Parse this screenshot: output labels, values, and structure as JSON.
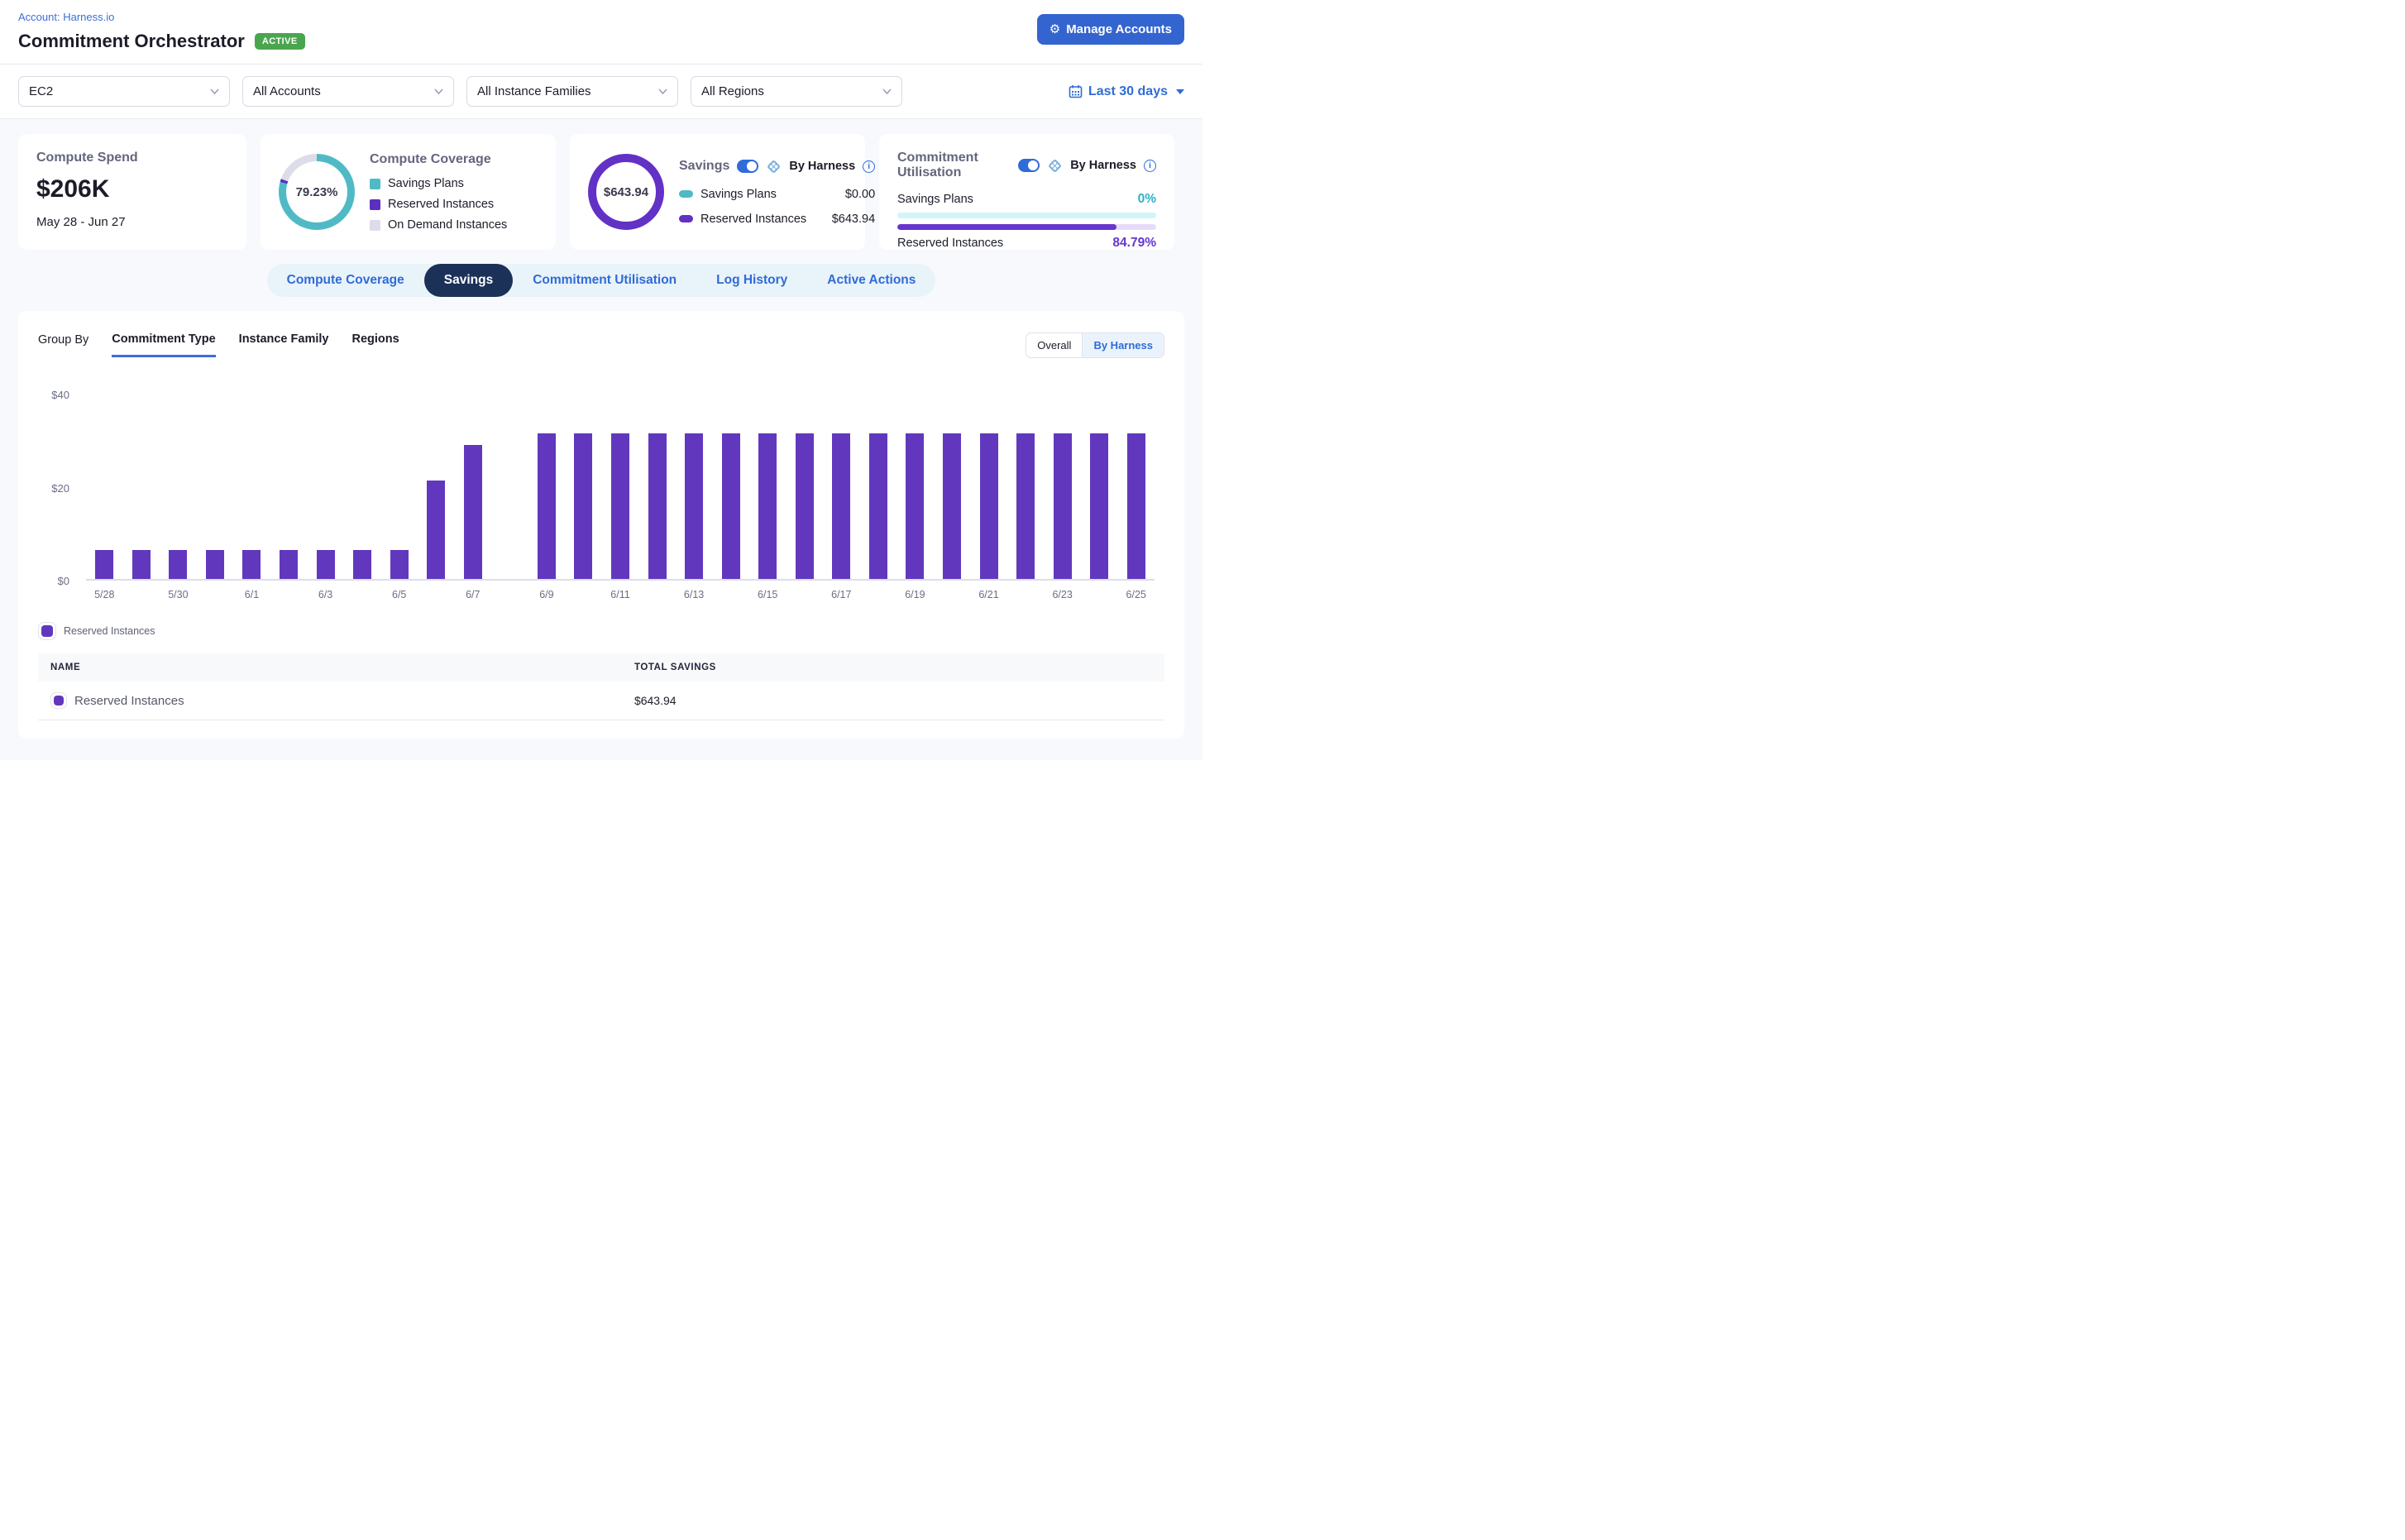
{
  "header": {
    "account_link": "Account: Harness.io",
    "title": "Commitment Orchestrator",
    "status_badge": "ACTIVE",
    "manage_accounts_label": "Manage Accounts"
  },
  "filters": {
    "service": "EC2",
    "accounts": "All Accounts",
    "instance_families": "All Instance Families",
    "regions": "All Regions",
    "date_range": "Last 30 days"
  },
  "cards": {
    "compute_spend": {
      "title": "Compute Spend",
      "value": "$206K",
      "period": "May 28 - Jun 27"
    },
    "compute_coverage": {
      "title": "Compute Coverage",
      "center_percent": "79.23%",
      "segments": [
        {
          "label": "Savings Plans",
          "color": "#4fbac5",
          "pct": 79.23
        },
        {
          "label": "Reserved Instances",
          "color": "#5b2fc0",
          "pct": 1.3
        },
        {
          "label": "On Demand Instances",
          "color": "#dcdde8",
          "pct": 19.47
        }
      ]
    },
    "savings": {
      "title": "Savings",
      "toggle_on": true,
      "by_harness_label": "By Harness",
      "center_value": "$643.94",
      "ring_color": "#6231c5",
      "rows": [
        {
          "label": "Savings Plans",
          "value": "$0.00",
          "color": "#4fbac5"
        },
        {
          "label": "Reserved Instances",
          "value": "$643.94",
          "color": "#6231c5"
        }
      ]
    },
    "commitment_utilisation": {
      "title": "Commitment Utilisation",
      "toggle_on": true,
      "by_harness_label": "By Harness",
      "rows": [
        {
          "label": "Savings Plans",
          "value": "0%",
          "pct": 0,
          "value_color": "#2eb1c4",
          "track_color": "#d2f5f7",
          "fill_color": "#2eb1c4",
          "label_position": "above"
        },
        {
          "label": "Reserved Instances",
          "value": "84.79%",
          "pct": 84.79,
          "value_color": "#6636cd",
          "track_color": "#e6dcf9",
          "fill_color": "#6636cd",
          "label_position": "below"
        }
      ]
    }
  },
  "tabs": [
    {
      "label": "Compute Coverage",
      "active": false
    },
    {
      "label": "Savings",
      "active": true
    },
    {
      "label": "Commitment Utilisation",
      "active": false
    },
    {
      "label": "Log History",
      "active": false
    },
    {
      "label": "Active Actions",
      "active": false
    }
  ],
  "panel": {
    "group_by_label": "Group By",
    "group_tabs": [
      {
        "label": "Commitment Type",
        "active": true
      },
      {
        "label": "Instance Family",
        "active": false
      },
      {
        "label": "Regions",
        "active": false
      }
    ],
    "view_toggle": [
      {
        "label": "Overall",
        "active": false
      },
      {
        "label": "By Harness",
        "active": true
      }
    ]
  },
  "chart_data": {
    "type": "bar",
    "series_name": "Reserved Instances",
    "bar_color": "#6138bd",
    "categories": [
      "5/28",
      "5/29",
      "5/30",
      "5/31",
      "6/1",
      "6/2",
      "6/3",
      "6/4",
      "6/5",
      "6/6",
      "6/7",
      "6/8",
      "6/9",
      "6/10",
      "6/11",
      "6/12",
      "6/13",
      "6/14",
      "6/15",
      "6/16",
      "6/17",
      "6/18",
      "6/19",
      "6/20",
      "6/21",
      "6/22",
      "6/23",
      "6/24",
      "6/25"
    ],
    "values": [
      6.3,
      6.3,
      6.3,
      6.3,
      6.3,
      6.3,
      6.3,
      6.3,
      6.3,
      21.2,
      28.8,
      0,
      31.3,
      31.3,
      31.3,
      31.3,
      31.3,
      31.3,
      31.3,
      31.3,
      31.3,
      31.3,
      31.3,
      31.3,
      31.3,
      31.3,
      31.3,
      31.3,
      31.3
    ],
    "x_tick_every": 2,
    "y_ticks": [
      {
        "label": "$0",
        "value": 0
      },
      {
        "label": "$20",
        "value": 20
      },
      {
        "label": "$40",
        "value": 40
      }
    ],
    "ylim": [
      0,
      40
    ],
    "grid": false,
    "legend_position": "bottom-left"
  },
  "chart_legend": {
    "label": "Reserved Instances",
    "color": "#6138bd"
  },
  "table": {
    "columns": [
      "NAME",
      "TOTAL SAVINGS"
    ],
    "rows": [
      {
        "name": "Reserved Instances",
        "swatch_color": "#6138bd",
        "total_savings": "$643.94"
      }
    ]
  },
  "colors": {
    "accent_blue": "#3b6fd8",
    "button_blue": "#3464cf",
    "active_tab_navy": "#1b3158",
    "badge_green": "#4aa64e",
    "page_bg": "#f7f9fc"
  }
}
